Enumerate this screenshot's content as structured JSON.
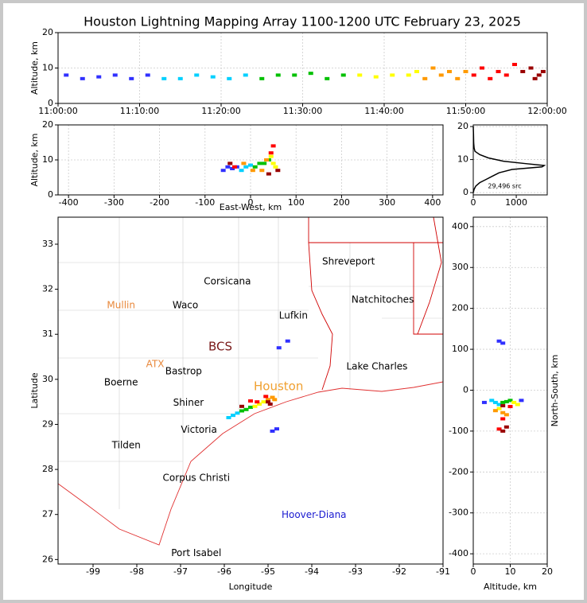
{
  "title": "Houston Lightning Mapping Array 1100-1200 UTC February 23, 2025",
  "chart_data": [
    {
      "type": "scatter",
      "ylabel": "Altitude, km",
      "xlim": [
        0,
        60
      ],
      "ylim": [
        0,
        20
      ],
      "xticks": [
        {
          "value": 0,
          "label": "11:00:00"
        },
        {
          "value": 10,
          "label": "11:10:00"
        },
        {
          "value": 20,
          "label": "11:20:00"
        },
        {
          "value": 30,
          "label": "11:30:00"
        },
        {
          "value": 40,
          "label": "11:40:00"
        },
        {
          "value": 50,
          "label": "11:50:00"
        },
        {
          "value": 60,
          "label": "12:00:00"
        }
      ],
      "yticks": [
        0,
        10,
        20
      ],
      "grid": true,
      "colormap": [
        "#3030ff",
        "#00d0ff",
        "#00c000",
        "#ffff00",
        "#ff9900",
        "#ff0000",
        "#990000"
      ],
      "x": [
        1,
        3,
        5,
        7,
        9,
        11,
        13,
        15,
        17,
        19,
        21,
        23,
        25,
        27,
        29,
        31,
        33,
        35,
        37,
        39,
        41,
        43,
        44,
        45,
        46,
        47,
        48,
        49,
        50,
        51,
        52,
        53,
        54,
        55,
        56,
        57,
        58,
        59,
        59.5,
        58.5
      ],
      "y": [
        8,
        7,
        7.5,
        8,
        7,
        8,
        7,
        7,
        8,
        7.5,
        7,
        8,
        7,
        8,
        8,
        8.5,
        7,
        8,
        8,
        7.5,
        8,
        8,
        9,
        7,
        10,
        8,
        9,
        7,
        9,
        8,
        10,
        7,
        9,
        8,
        11,
        9,
        10,
        8,
        9,
        7
      ]
    },
    {
      "type": "scatter",
      "xlabel": "East-West, km",
      "ylabel": "Altitude, km",
      "xlim": [
        -423,
        423
      ],
      "ylim": [
        0,
        20
      ],
      "xticks": [
        -400,
        -300,
        -200,
        -100,
        0,
        100,
        200,
        300,
        400
      ],
      "yticks": [
        0,
        10,
        20
      ],
      "grid": true,
      "colormap": [
        "#3030ff",
        "#00d0ff",
        "#00c000",
        "#ffff00",
        "#ff9900",
        "#ff0000",
        "#990000"
      ],
      "x": [
        -60,
        -50,
        -40,
        -30,
        -20,
        -10,
        0,
        10,
        20,
        30,
        40,
        50,
        55,
        45,
        35,
        25,
        5,
        -15,
        -35,
        45,
        50,
        40,
        60,
        -45
      ],
      "y": [
        7,
        8,
        7.5,
        8,
        7,
        8,
        8.5,
        8,
        9,
        9,
        10,
        9,
        8,
        11,
        10,
        7,
        7,
        9,
        8,
        12,
        14,
        6,
        7,
        9
      ]
    },
    {
      "type": "line",
      "annotation": "29,496 src",
      "xlim": [
        0,
        1720
      ],
      "ylim": [
        -0.7,
        20.5
      ],
      "xticks": [
        0,
        1000
      ],
      "yticks": [
        0,
        10,
        20
      ],
      "grid": true,
      "color": "#000000",
      "x": [
        0,
        20,
        60,
        150,
        300,
        450,
        600,
        900,
        1600,
        1650,
        1200,
        700,
        350,
        150,
        40,
        20,
        10,
        5,
        0
      ],
      "y": [
        0,
        1,
        2,
        3,
        4,
        5,
        6,
        7,
        7.8,
        8.2,
        8.8,
        9.5,
        10.5,
        11.5,
        12.5,
        13.5,
        15,
        18,
        20
      ]
    },
    {
      "type": "scatter",
      "xlabel": "Longitude",
      "ylabel": "Latitude",
      "xlim": [
        -99.8,
        -91
      ],
      "ylim": [
        25.9,
        33.6
      ],
      "xticks": [
        -99,
        -98,
        -97,
        -96,
        -95,
        -94,
        -93,
        -92,
        -91
      ],
      "yticks": [
        26,
        27,
        28,
        29,
        30,
        31,
        32,
        33
      ],
      "grid": false,
      "colormap": [
        "#3030ff",
        "#00d0ff",
        "#00c000",
        "#ffff00",
        "#ff9900",
        "#ff0000",
        "#990000"
      ],
      "x": [
        -94.8,
        -94.9,
        -94.55,
        -94.75,
        -95.9,
        -95.8,
        -95.7,
        -95.6,
        -95.5,
        -95.4,
        -95.3,
        -95.2,
        -95.1,
        -95,
        -94.9,
        -94.85,
        -95.05,
        -95.25,
        -95.4,
        -95.6,
        -95,
        -94.95
      ],
      "y": [
        28.9,
        28.85,
        30.85,
        30.7,
        29.15,
        29.2,
        29.25,
        29.3,
        29.33,
        29.38,
        29.4,
        29.45,
        29.5,
        29.55,
        29.6,
        29.55,
        29.62,
        29.5,
        29.52,
        29.4,
        29.5,
        29.45
      ],
      "labels": [
        {
          "text": "Corsicana",
          "x": -95.93,
          "y": 32.17,
          "color": "#000000"
        },
        {
          "text": "Shreveport",
          "x": -93.16,
          "y": 32.61,
          "color": "#000000"
        },
        {
          "text": "Natchitoches",
          "x": -92.38,
          "y": 31.76,
          "color": "#000000"
        },
        {
          "text": "Mullin",
          "x": -98.36,
          "y": 31.64,
          "color": "#e8873a"
        },
        {
          "text": "Waco",
          "x": -96.89,
          "y": 31.64,
          "color": "#000000"
        },
        {
          "text": "Lufkin",
          "x": -94.42,
          "y": 31.41,
          "color": "#000000"
        },
        {
          "text": "BCS",
          "x": -96.09,
          "y": 30.72,
          "color": "#7a1a1a"
        },
        {
          "text": "ATX",
          "x": -97.58,
          "y": 30.33,
          "color": "#e8873a"
        },
        {
          "text": "Bastrop",
          "x": -96.93,
          "y": 30.17,
          "color": "#000000"
        },
        {
          "text": "Lake Charles",
          "x": -92.51,
          "y": 30.28,
          "color": "#000000"
        },
        {
          "text": "Boerne",
          "x": -98.36,
          "y": 29.93,
          "color": "#000000"
        },
        {
          "text": "Houston",
          "x": -94.76,
          "y": 29.84,
          "color": "#f0a030"
        },
        {
          "text": "Shiner",
          "x": -96.82,
          "y": 29.48,
          "color": "#000000"
        },
        {
          "text": "Victoria",
          "x": -96.58,
          "y": 28.88,
          "color": "#000000"
        },
        {
          "text": "Tilden",
          "x": -98.24,
          "y": 28.53,
          "color": "#000000"
        },
        {
          "text": "Corpus Christi",
          "x": -96.64,
          "y": 27.81,
          "color": "#000000"
        },
        {
          "text": "Hoover-Diana",
          "x": -93.95,
          "y": 26.99,
          "color": "#1a1ad0"
        },
        {
          "text": "Port Isabel",
          "x": -96.64,
          "y": 26.14,
          "color": "#000000"
        }
      ]
    },
    {
      "type": "scatter",
      "xlabel": "Altitude, km",
      "ylabel": "North-South, km",
      "ylabel_side": "right",
      "xlim": [
        0,
        20
      ],
      "ylim": [
        -425,
        423
      ],
      "xticks": [
        0,
        10,
        20
      ],
      "yticks": [
        -400,
        -300,
        -200,
        -100,
        0,
        100,
        200,
        300,
        400
      ],
      "grid": true,
      "colormap": [
        "#3030ff",
        "#00d0ff",
        "#00c000",
        "#ffff00",
        "#ff9900",
        "#ff0000",
        "#990000"
      ],
      "x": [
        7,
        8,
        3,
        13,
        5,
        6,
        7,
        8,
        9,
        10,
        11,
        12,
        7,
        8,
        9,
        6,
        10,
        8,
        7,
        8,
        9,
        8
      ],
      "y": [
        120,
        115,
        -30,
        -25,
        -25,
        -30,
        -35,
        -30,
        -28,
        -25,
        -30,
        -35,
        -45,
        -55,
        -60,
        -50,
        -40,
        -70,
        -95,
        -100,
        -90,
        -38
      ]
    }
  ]
}
